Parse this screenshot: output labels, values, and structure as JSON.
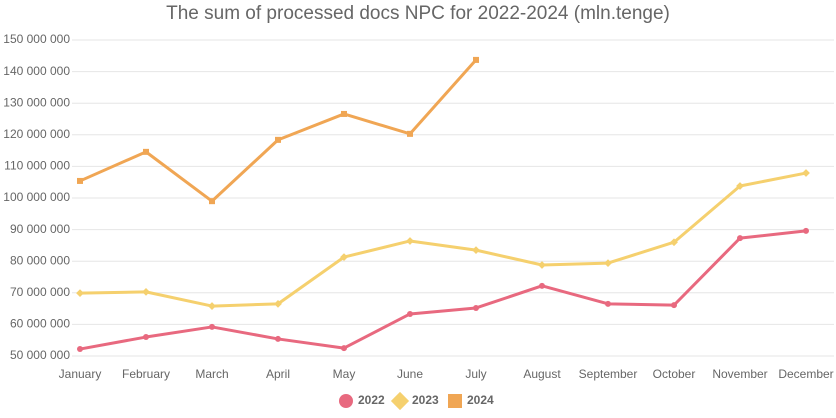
{
  "chart_data": {
    "type": "line",
    "title": "The sum of processed docs NPC for 2022-2024 (mln.tenge)",
    "categories": [
      "January",
      "February",
      "March",
      "April",
      "May",
      "June",
      "July",
      "August",
      "September",
      "October",
      "November",
      "December"
    ],
    "series": [
      {
        "name": "2022",
        "color": "#e8697f",
        "marker": "circle",
        "values": [
          52200000,
          56000000,
          59200000,
          55400000,
          52500000,
          63300000,
          65200000,
          72200000,
          66500000,
          66100000,
          87300000,
          89600000
        ]
      },
      {
        "name": "2023",
        "color": "#f5d06e",
        "marker": "diamond",
        "values": [
          69900000,
          70300000,
          65800000,
          66500000,
          81300000,
          86400000,
          83500000,
          78800000,
          79400000,
          86000000,
          103800000,
          107900000
        ]
      },
      {
        "name": "2024",
        "color": "#f0a654",
        "marker": "square",
        "values": [
          105400000,
          114600000,
          99000000,
          118400000,
          126600000,
          120300000,
          143700000,
          null,
          null,
          null,
          null,
          null
        ]
      }
    ],
    "ylim": [
      50000000,
      150000000
    ],
    "yticks": [
      {
        "value": 50000000,
        "label": "50 000 000"
      },
      {
        "value": 60000000,
        "label": "60 000 000"
      },
      {
        "value": 70000000,
        "label": "70 000 000"
      },
      {
        "value": 80000000,
        "label": "80 000 000"
      },
      {
        "value": 90000000,
        "label": "90 000 000"
      },
      {
        "value": 100000000,
        "label": "100 000 000"
      },
      {
        "value": 110000000,
        "label": "110 000 000"
      },
      {
        "value": 120000000,
        "label": "120 000 000"
      },
      {
        "value": 130000000,
        "label": "130 000 000"
      },
      {
        "value": 140000000,
        "label": "140 000 000"
      },
      {
        "value": 150000000,
        "label": "150 000 000"
      }
    ],
    "grid": true,
    "legend": "bottom"
  }
}
